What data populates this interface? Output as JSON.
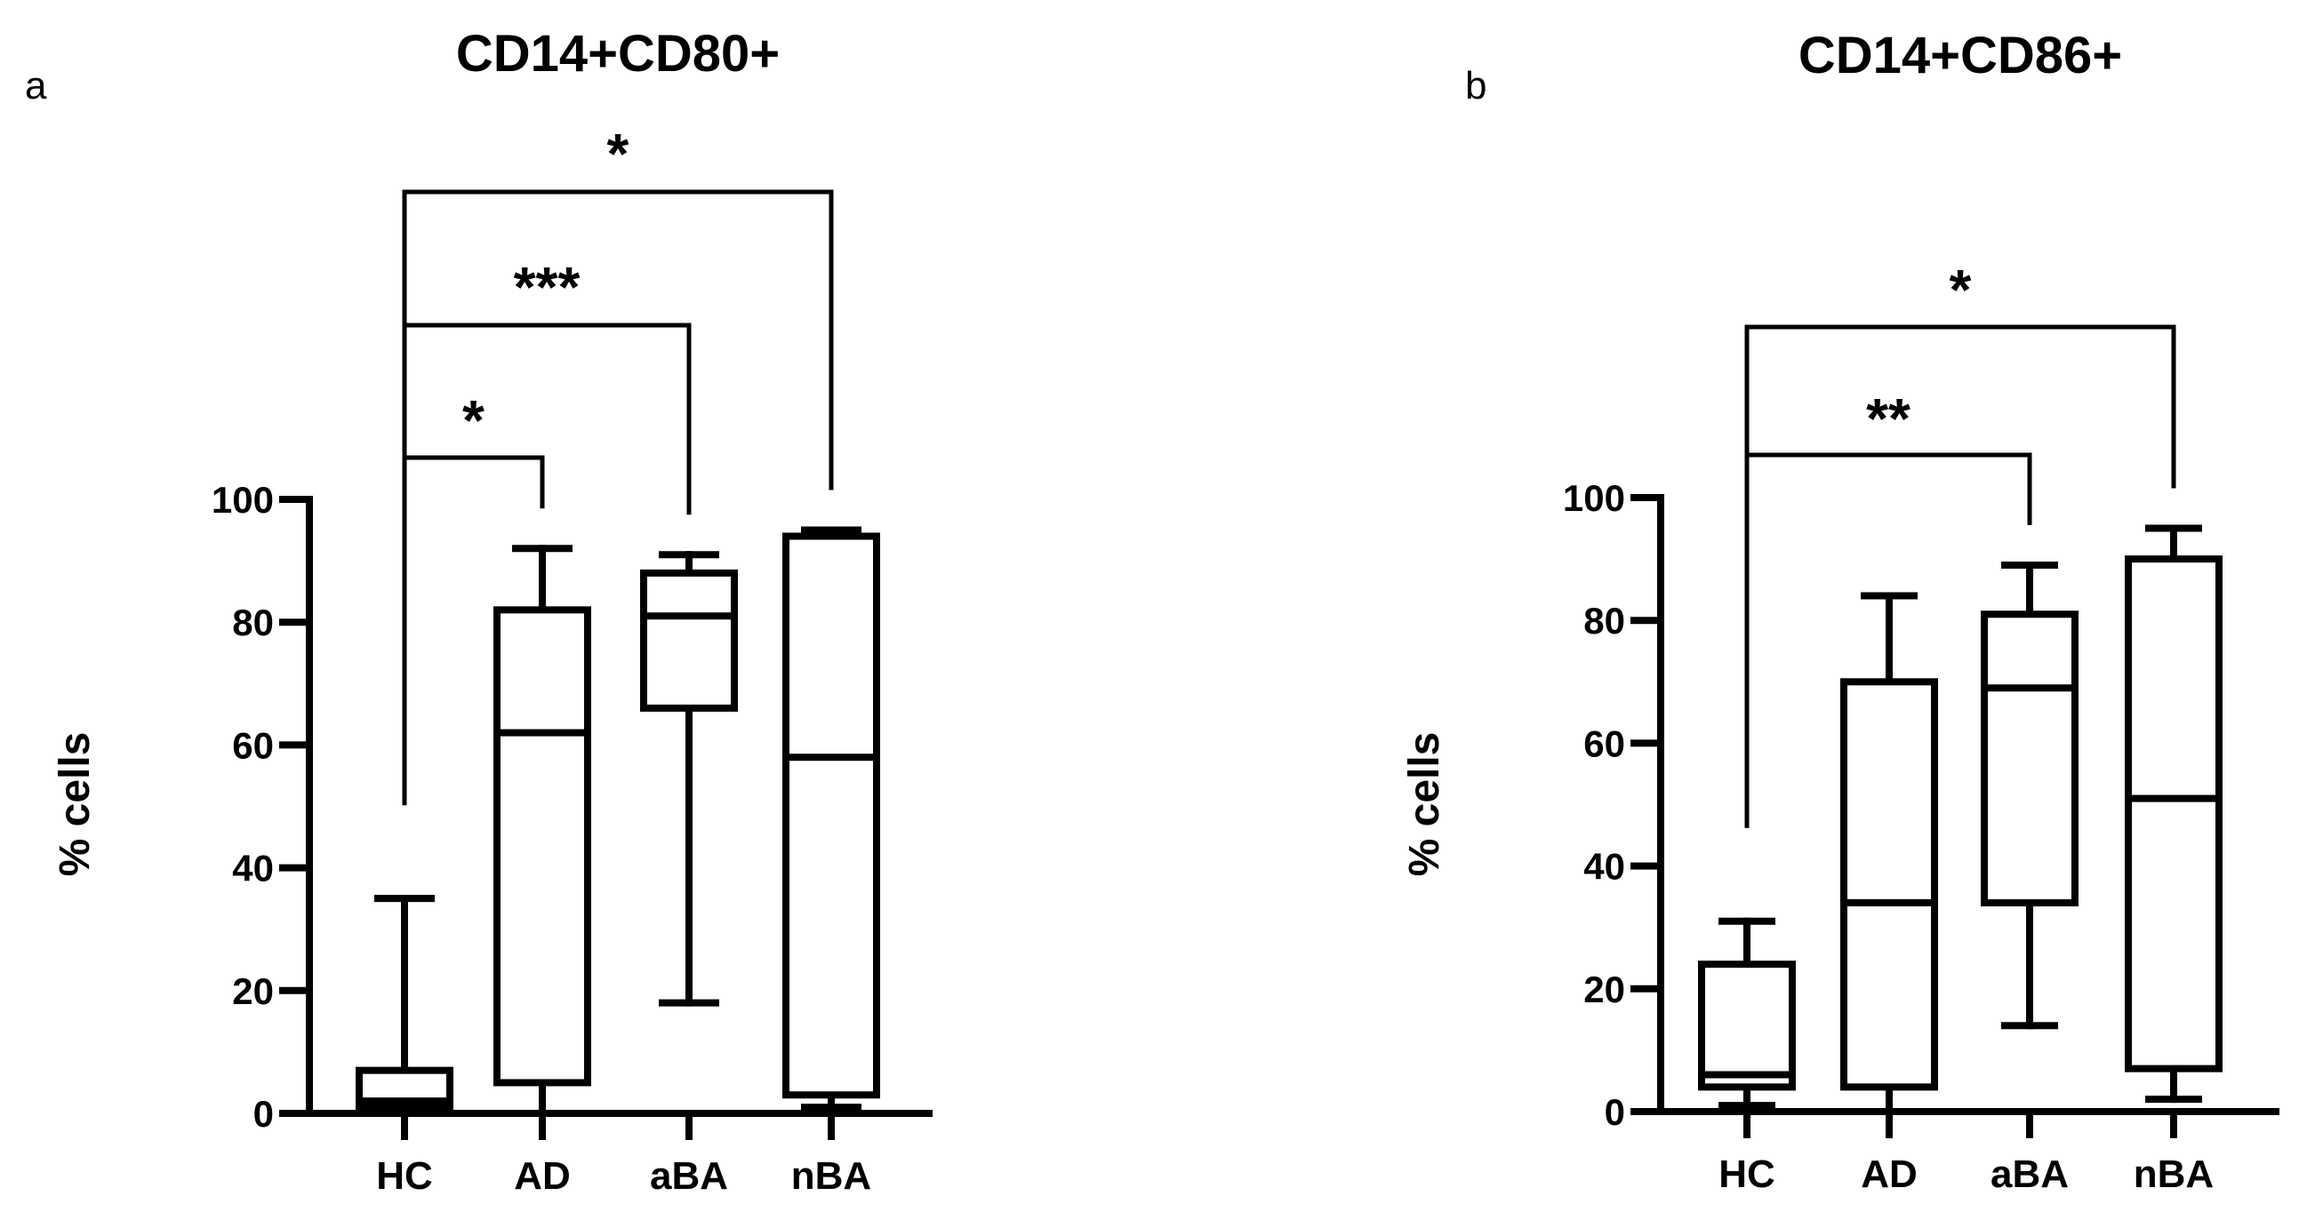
{
  "panels": [
    {
      "letter": "a",
      "title": "CD14+CD80+",
      "ylabel": "% cells"
    },
    {
      "letter": "b",
      "title": "CD14+CD86+",
      "ylabel": "% cells"
    }
  ],
  "chart_data": [
    {
      "type": "box",
      "title": "CD14+CD80+",
      "xlabel": "",
      "ylabel": "% cells",
      "ylim": [
        0,
        100
      ],
      "yticks": [
        0,
        20,
        40,
        60,
        80,
        100
      ],
      "categories": [
        "HC",
        "AD",
        "aBA",
        "nBA"
      ],
      "boxes": [
        {
          "category": "HC",
          "min": 1,
          "q1": 1,
          "median": 2,
          "q3": 7,
          "max": 35
        },
        {
          "category": "AD",
          "min": 0,
          "q1": 5,
          "median": 62,
          "q3": 82,
          "max": 92
        },
        {
          "category": "aBA",
          "min": 18,
          "q1": 66,
          "median": 81,
          "q3": 88,
          "max": 91
        },
        {
          "category": "nBA",
          "min": 1,
          "q1": 3,
          "median": 58,
          "q3": 94,
          "max": 95
        }
      ],
      "comparisons": [
        {
          "from": "HC",
          "to": "AD",
          "label": "*",
          "level": 1
        },
        {
          "from": "HC",
          "to": "aBA",
          "label": "***",
          "level": 2
        },
        {
          "from": "HC",
          "to": "nBA",
          "label": "*",
          "level": 3
        }
      ]
    },
    {
      "type": "box",
      "title": "CD14+CD86+",
      "xlabel": "",
      "ylabel": "% cells",
      "ylim": [
        0,
        100
      ],
      "yticks": [
        0,
        20,
        40,
        60,
        80,
        100
      ],
      "categories": [
        "HC",
        "AD",
        "aBA",
        "nBA"
      ],
      "boxes": [
        {
          "category": "HC",
          "min": 1,
          "q1": 4,
          "median": 6,
          "q3": 24,
          "max": 31
        },
        {
          "category": "AD",
          "min": 0,
          "q1": 4,
          "median": 34,
          "q3": 70,
          "max": 84
        },
        {
          "category": "aBA",
          "min": 14,
          "q1": 34,
          "median": 69,
          "q3": 81,
          "max": 89
        },
        {
          "category": "nBA",
          "min": 2,
          "q1": 7,
          "median": 51,
          "q3": 90,
          "max": 95
        }
      ],
      "comparisons": [
        {
          "from": "HC",
          "to": "aBA",
          "label": "**",
          "level": 1
        },
        {
          "from": "HC",
          "to": "nBA",
          "label": "*",
          "level": 2
        }
      ]
    }
  ]
}
